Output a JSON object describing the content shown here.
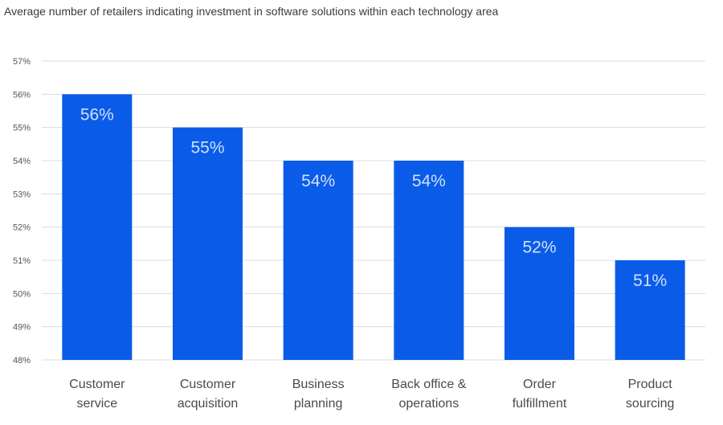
{
  "chart_data": {
    "type": "bar",
    "title": "Average number of retailers indicating investment in software solutions within each technology area",
    "categories": [
      [
        "Customer",
        "service"
      ],
      [
        "Customer",
        "acquisition"
      ],
      [
        "Business",
        "planning"
      ],
      [
        "Back office &",
        "operations"
      ],
      [
        "Order",
        "fulfillment"
      ],
      [
        "Product",
        "sourcing"
      ]
    ],
    "values": [
      56,
      55,
      54,
      54,
      52,
      51
    ],
    "data_labels": [
      "56%",
      "55%",
      "54%",
      "54%",
      "52%",
      "51%"
    ],
    "yticks": [
      "48%",
      "49%",
      "50%",
      "51%",
      "52%",
      "53%",
      "54%",
      "55%",
      "56%",
      "57%"
    ],
    "ylim": [
      48,
      57
    ],
    "grid": true,
    "legend": "none",
    "bar_color": "#0a5ce8"
  }
}
